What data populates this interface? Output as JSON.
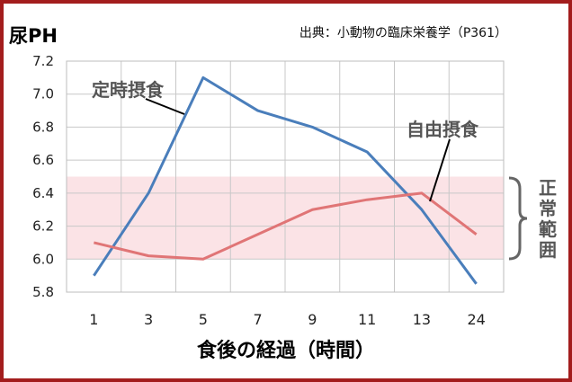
{
  "title": "尿PH",
  "source": "出典：小動物の臨床栄養学（P361）",
  "xlabel": "食後の経過（時間）",
  "normal_range_label": [
    "正",
    "常",
    "範",
    "囲"
  ],
  "colors": {
    "frame": "#a31d1d",
    "band": "#fbe3e6",
    "grid": "#c8c8c8",
    "series_fixed": "#4a7ebb",
    "series_free": "#e07576",
    "annotation_text": "#555555"
  },
  "chart_data": {
    "type": "line",
    "categories": [
      "1",
      "3",
      "5",
      "7",
      "9",
      "11",
      "13",
      "24"
    ],
    "series": [
      {
        "name": "定時摂食",
        "values": [
          5.9,
          6.4,
          7.1,
          6.9,
          6.8,
          6.65,
          6.3,
          5.85
        ],
        "color": "#4a7ebb"
      },
      {
        "name": "自由摂食",
        "values": [
          6.1,
          6.02,
          6.0,
          6.15,
          6.3,
          6.36,
          6.4,
          6.15
        ],
        "color": "#e07576"
      }
    ],
    "normal_range": [
      6.0,
      6.5
    ],
    "ylim": [
      5.8,
      7.2
    ],
    "yticks": [
      "7.2",
      "7.0",
      "6.8",
      "6.6",
      "6.4",
      "6.2",
      "6.0",
      "5.8"
    ],
    "grid": true
  }
}
